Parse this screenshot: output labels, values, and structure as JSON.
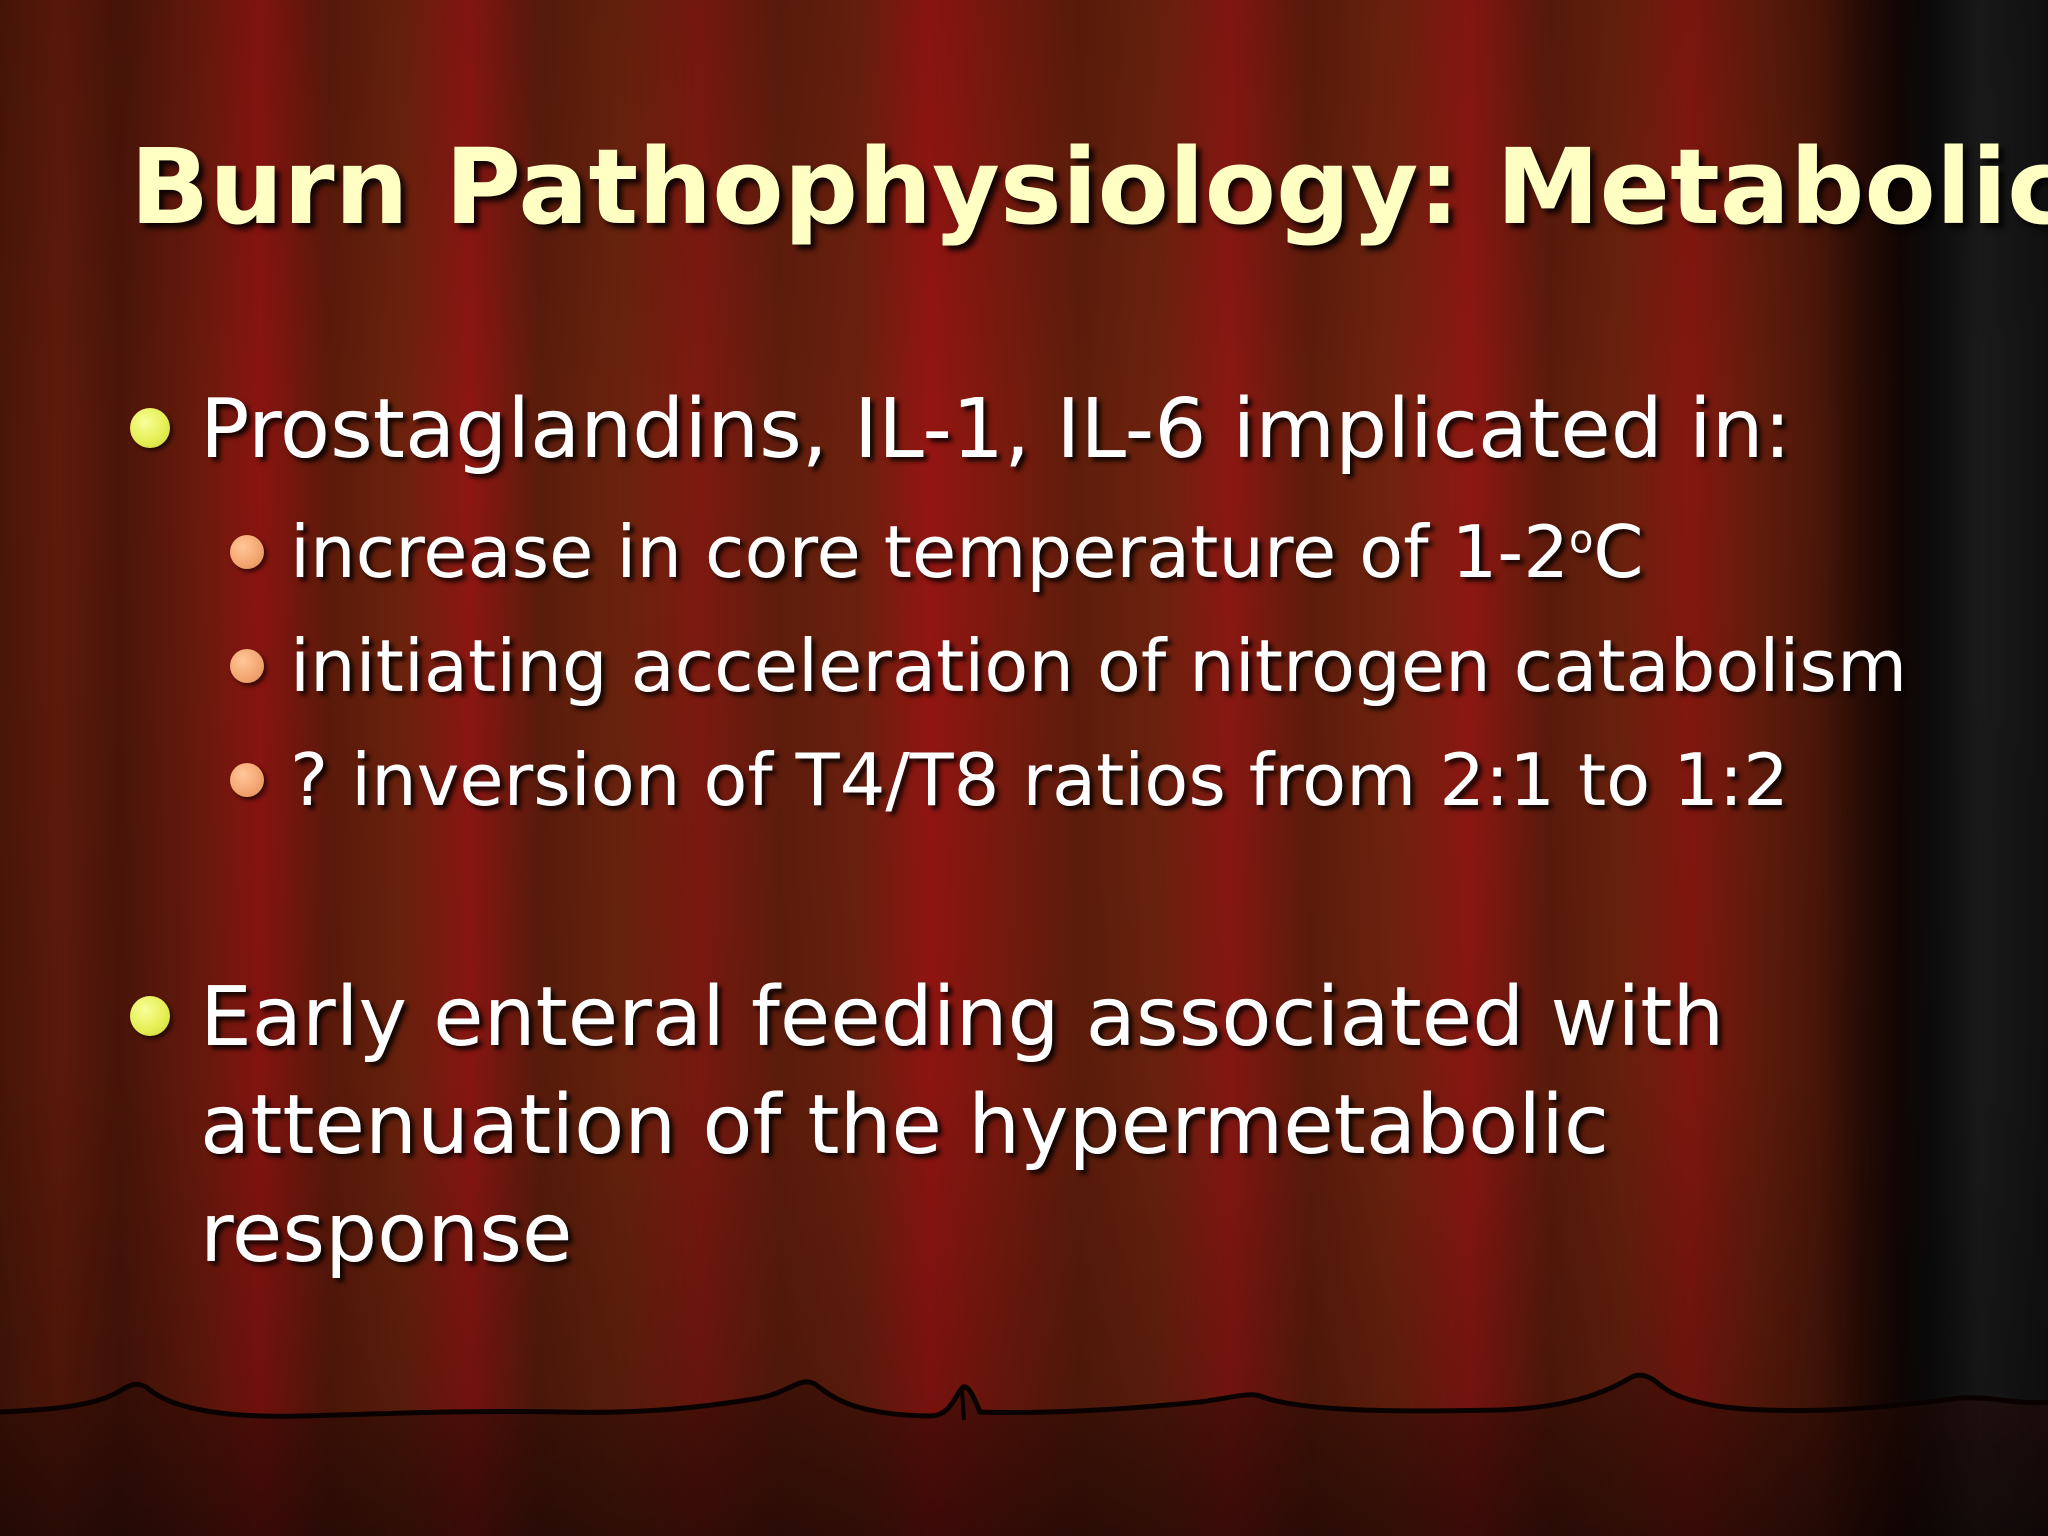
{
  "slide": {
    "title": "Burn Pathophysiology: Metabolic",
    "bullets": [
      {
        "text": "Prostaglandins, IL-1, IL-6 implicated in:",
        "subbullets": [
          {
            "text_before": "increase in core temperature of 1-2",
            "superscript": "o",
            "text_after": "C"
          },
          {
            "text": "initiating acceleration of nitrogen catabolism"
          },
          {
            "text": "? inversion of T4/T8 ratios from 2:1 to 1:2"
          }
        ]
      },
      {
        "lines": [
          "Early enteral feeding associated with",
          "attenuation of the hypermetabolic",
          "response"
        ]
      }
    ]
  },
  "theme": {
    "title_color": "#ffffc4",
    "text_color": "#ffffff",
    "bullet_l1_color": "#e6ef55",
    "bullet_l2_color": "#f2a46e",
    "background": "red theater curtain"
  }
}
